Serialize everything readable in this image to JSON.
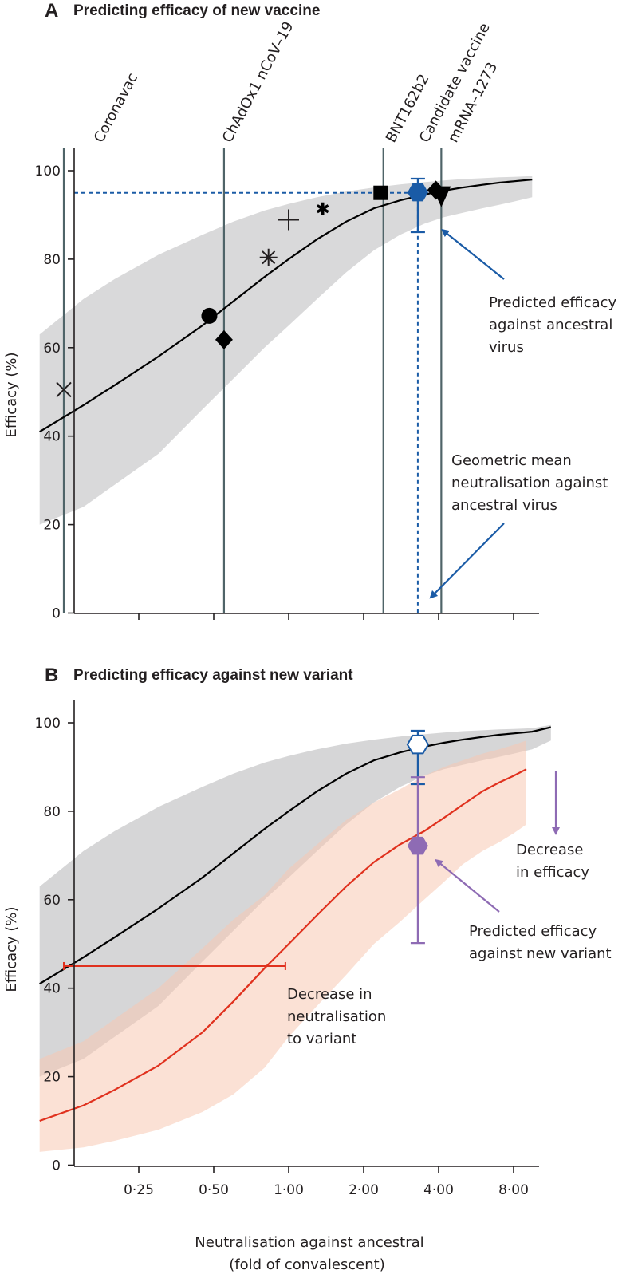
{
  "chart_data": [
    {
      "panel": "A",
      "type": "line",
      "title": "Predicting efficacy of new vaccine",
      "ylabel": "Efficacy (%)",
      "x_scale": "log2",
      "xlim": [
        0.1,
        10
      ],
      "ylim": [
        0,
        100
      ],
      "yticks": [
        "0",
        "20",
        "40",
        "60",
        "80",
        "100"
      ],
      "curve": {
        "x": [
          0.1,
          0.15,
          0.2,
          0.3,
          0.45,
          0.6,
          0.8,
          1.0,
          1.3,
          1.7,
          2.2,
          2.8,
          3.5,
          4.2,
          5.0,
          6.0,
          7.0,
          8.0,
          9.5
        ],
        "y": [
          41,
          47,
          51.5,
          58,
          65,
          70.5,
          76,
          80,
          84.5,
          88.5,
          91.5,
          93.3,
          94.6,
          95.5,
          96.2,
          96.8,
          97.3,
          97.6,
          98.0
        ]
      },
      "band": {
        "x": [
          0.1,
          0.15,
          0.2,
          0.3,
          0.45,
          0.6,
          0.8,
          1.0,
          1.3,
          1.7,
          2.2,
          2.8,
          3.5,
          4.2,
          5.0,
          6.0,
          7.0,
          8.0,
          9.5
        ],
        "lower": [
          20,
          24,
          29,
          36,
          46,
          53,
          60,
          65,
          71,
          77,
          82,
          85.5,
          88,
          89.5,
          90.5,
          91.5,
          92.3,
          93,
          94
        ],
        "upper": [
          63,
          71,
          75.5,
          81,
          85.5,
          88.5,
          91,
          92.5,
          94,
          95.3,
          96.2,
          96.9,
          97.4,
          97.8,
          98.1,
          98.3,
          98.5,
          98.6,
          98.8
        ]
      },
      "vaccines": [
        {
          "label": "Coronavac",
          "x": 0.125
        },
        {
          "label": "ChAdOx1 nCoV–19",
          "x": 0.55
        },
        {
          "label": "BNT162b2",
          "x": 2.4
        },
        {
          "label": "mRNA–1273",
          "x": 4.1
        }
      ],
      "markers": [
        {
          "shape": "x",
          "x": 0.125,
          "y": 50.5
        },
        {
          "shape": "circle",
          "x": 0.48,
          "y": 67.2
        },
        {
          "shape": "diamond",
          "x": 0.55,
          "y": 61.8
        },
        {
          "shape": "asterisk",
          "x": 0.83,
          "y": 80.4
        },
        {
          "shape": "plus",
          "x": 1.0,
          "y": 88.9
        },
        {
          "shape": "star",
          "x": 1.37,
          "y": 91.4
        },
        {
          "shape": "square",
          "x": 2.34,
          "y": 95
        },
        {
          "shape": "diamond",
          "x": 3.9,
          "y": 95.6
        },
        {
          "shape": "triangle-down",
          "x": 4.1,
          "y": 94.3
        }
      ],
      "candidate": {
        "label": "Candidate vaccine",
        "x": 3.3,
        "y": 95.1,
        "ci": [
          86.1,
          98.2
        ],
        "color": "#1a5ba6"
      },
      "ref_line_y": 95,
      "annotations": {
        "efficacy": [
          "Predicted efficacy",
          "against ancestral",
          "virus"
        ],
        "neutralisation": [
          "Geometric mean",
          "neutralisation against",
          "ancestral virus"
        ]
      }
    },
    {
      "panel": "B",
      "type": "line",
      "title": "Predicting efficacy against new variant",
      "ylabel": "Efficacy (%)",
      "xlabel": [
        "Neutralisation against ancestral",
        "(fold of convalescent)"
      ],
      "x_scale": "log2",
      "xlim": [
        0.1,
        10
      ],
      "ylim": [
        0,
        100
      ],
      "yticks": [
        "0",
        "20",
        "40",
        "60",
        "80",
        "100"
      ],
      "xticks": [
        {
          "value": 0.25,
          "label": "0·25"
        },
        {
          "value": 0.5,
          "label": "0·50"
        },
        {
          "value": 1.0,
          "label": "1·00"
        },
        {
          "value": 2.0,
          "label": "2·00"
        },
        {
          "value": 4.0,
          "label": "4·00"
        },
        {
          "value": 8.0,
          "label": "8·00"
        }
      ],
      "series": [
        {
          "color": "#000000",
          "x": [
            0.1,
            0.15,
            0.2,
            0.3,
            0.45,
            0.6,
            0.8,
            1.0,
            1.3,
            1.7,
            2.2,
            2.8,
            3.5,
            4.2,
            5.0,
            6.0,
            7.0,
            8.0,
            9.5,
            11.3
          ],
          "y": [
            41,
            47,
            51.5,
            58,
            65,
            70.5,
            76,
            80,
            84.5,
            88.5,
            91.5,
            93.3,
            94.6,
            95.5,
            96.2,
            96.8,
            97.3,
            97.6,
            98.0,
            99.0
          ],
          "band_lower": [
            20,
            24,
            29,
            36,
            46,
            53,
            60,
            65,
            71,
            77,
            82,
            85.5,
            88,
            89.5,
            90.5,
            91.5,
            92.3,
            93,
            94,
            96
          ],
          "band_upper": [
            63,
            71,
            75.5,
            81,
            85.5,
            88.5,
            91,
            92.5,
            94,
            95.3,
            96.2,
            96.9,
            97.4,
            97.8,
            98.1,
            98.3,
            98.5,
            98.6,
            98.8,
            99.5
          ]
        },
        {
          "color": "#e0311e",
          "x": [
            0.1,
            0.15,
            0.2,
            0.3,
            0.45,
            0.6,
            0.8,
            1.0,
            1.3,
            1.7,
            2.2,
            2.8,
            3.5,
            4.2,
            5.0,
            6.0,
            7.0,
            8.0,
            9.0
          ],
          "y": [
            10,
            13.5,
            17,
            22.5,
            30,
            37,
            44.5,
            50,
            56.5,
            63,
            68.5,
            72.5,
            75.5,
            78.5,
            81.5,
            84.5,
            86.5,
            88,
            89.5
          ],
          "band_lower": [
            3,
            4,
            5.5,
            8,
            12,
            16,
            22,
            29,
            36,
            43,
            50,
            55,
            60,
            64,
            68,
            71,
            73,
            75,
            77
          ],
          "band_upper": [
            24,
            28,
            33,
            40,
            49,
            55.5,
            61,
            67,
            72.5,
            78,
            82,
            85,
            88,
            90,
            91.5,
            93,
            94,
            95,
            96
          ]
        }
      ],
      "ancestral_point": {
        "x": 3.3,
        "y": 95.1,
        "ci": [
          86.1,
          98.2
        ],
        "color": "#1a5ba6"
      },
      "variant_point": {
        "x": 3.3,
        "y": 72.2,
        "ci": [
          50.2,
          87.7
        ],
        "color": "#8e6bb4"
      },
      "shift_bar": {
        "x_from": 0.125,
        "x_to": 0.97,
        "y": 45,
        "color": "#e0311e"
      },
      "annotations": {
        "decrease_efficacy": [
          "Decrease",
          "in efficacy"
        ],
        "predicted_variant": [
          "Predicted efficacy",
          "against new variant"
        ],
        "decrease_neutralisation": [
          "Decrease in",
          "neutralisation",
          "to variant"
        ]
      }
    }
  ]
}
